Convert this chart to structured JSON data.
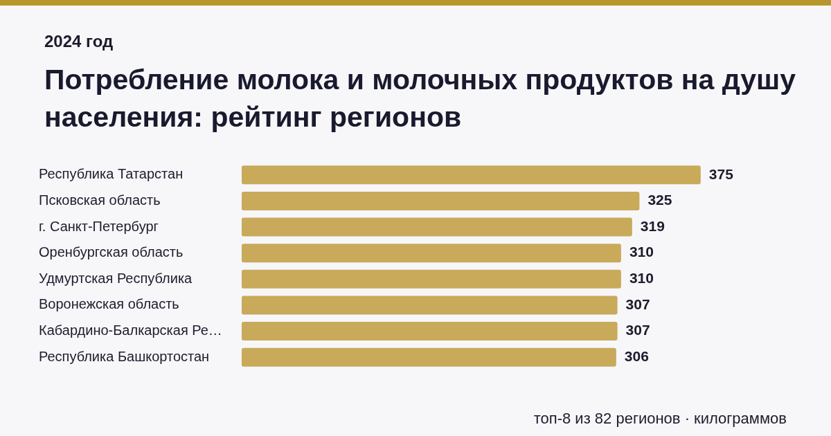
{
  "chart_data": {
    "type": "bar",
    "orientation": "horizontal",
    "title": "Потребление молока и молочных продуктов на душу населения: рейтинг регионов",
    "subtitle": "2024 год",
    "categories": [
      "Республика Татарстан",
      "Псковская область",
      "г. Санкт-Петербург",
      "Оренбургская область",
      "Удмуртская Республика",
      "Воронежская область",
      "Кабардино-Балкарская Ре…",
      "Республика Башкортостан"
    ],
    "values": [
      375,
      325,
      319,
      310,
      310,
      307,
      307,
      306
    ],
    "color": "#c8aa5a",
    "data_labels": true,
    "annotations": [
      "топ-8 из 82 регионов · килограммов"
    ]
  }
}
